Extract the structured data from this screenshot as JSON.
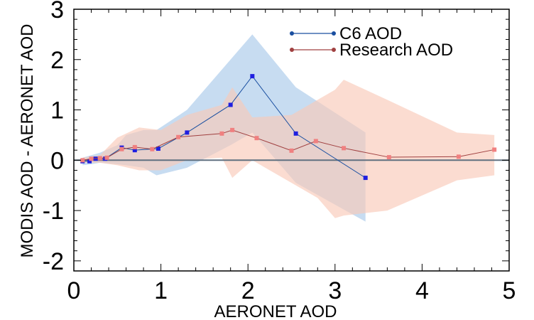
{
  "chart_data": {
    "type": "line",
    "xlabel": "AERONET AOD",
    "ylabel": "MODIS AOD - AERONET AOD",
    "xlim": [
      0,
      5
    ],
    "ylim": [
      -2.2,
      3.0
    ],
    "xticks": [
      0,
      1,
      2,
      3,
      4,
      5
    ],
    "xtick_labels": [
      "0",
      "1",
      "2",
      "3",
      "4",
      "5"
    ],
    "yticks": [
      -2,
      -1,
      0,
      1,
      2,
      3
    ],
    "ytick_labels": [
      "-2",
      "-1",
      "0",
      "1",
      "2",
      "3"
    ],
    "zero_line": 0,
    "legend": "top-right",
    "grid": false,
    "series": [
      {
        "name": "C6 AOD",
        "color": "#1a4fa0",
        "marker_color": "#1f1fe0",
        "band_color": "#a9c9ea",
        "x": [
          0.1,
          0.18,
          0.25,
          0.36,
          0.55,
          0.7,
          0.97,
          1.3,
          1.8,
          2.05,
          2.55,
          3.35
        ],
        "values": [
          -0.02,
          -0.02,
          0.03,
          0.03,
          0.25,
          0.2,
          0.23,
          0.55,
          1.1,
          1.67,
          0.53,
          -0.35
        ],
        "band_x": [
          0.1,
          0.2,
          0.3,
          0.5,
          0.6,
          0.8,
          0.95,
          1.3,
          1.8,
          2.05,
          2.55,
          3.35
        ],
        "band_upper": [
          0.05,
          0.1,
          0.15,
          0.3,
          0.5,
          0.6,
          0.6,
          1.0,
          2.0,
          2.5,
          1.45,
          0.55
        ],
        "band_lower": [
          -0.1,
          -0.08,
          -0.05,
          -0.08,
          -0.1,
          -0.15,
          -0.3,
          -0.15,
          0.3,
          0.55,
          -0.45,
          -1.22
        ]
      },
      {
        "name": "Research AOD",
        "color": "#a04040",
        "marker_color": "#f08080",
        "band_color": "#f9c9b8",
        "x": [
          0.1,
          0.2,
          0.3,
          0.38,
          0.55,
          0.7,
          0.9,
          1.2,
          1.7,
          1.82,
          2.1,
          2.5,
          2.78,
          3.1,
          3.62,
          4.42,
          4.83
        ],
        "values": [
          0.0,
          0.03,
          0.04,
          0.05,
          0.22,
          0.26,
          0.22,
          0.46,
          0.53,
          0.6,
          0.44,
          0.19,
          0.38,
          0.24,
          0.06,
          0.07,
          0.21
        ],
        "band_x": [
          0.1,
          0.3,
          0.5,
          0.75,
          1.0,
          1.3,
          1.7,
          1.82,
          2.05,
          2.5,
          2.8,
          3.0,
          3.1,
          3.6,
          4.4,
          4.83
        ],
        "band_upper": [
          0.05,
          0.1,
          0.45,
          0.65,
          0.6,
          0.9,
          1.1,
          1.45,
          0.85,
          0.9,
          1.2,
          1.4,
          1.6,
          1.2,
          0.55,
          0.5
        ],
        "band_lower": [
          -0.05,
          -0.05,
          -0.1,
          -0.2,
          -0.2,
          0.0,
          0.05,
          -0.35,
          0.0,
          -0.45,
          -0.75,
          -1.15,
          -1.1,
          -1.0,
          -0.4,
          -0.3
        ]
      }
    ]
  }
}
